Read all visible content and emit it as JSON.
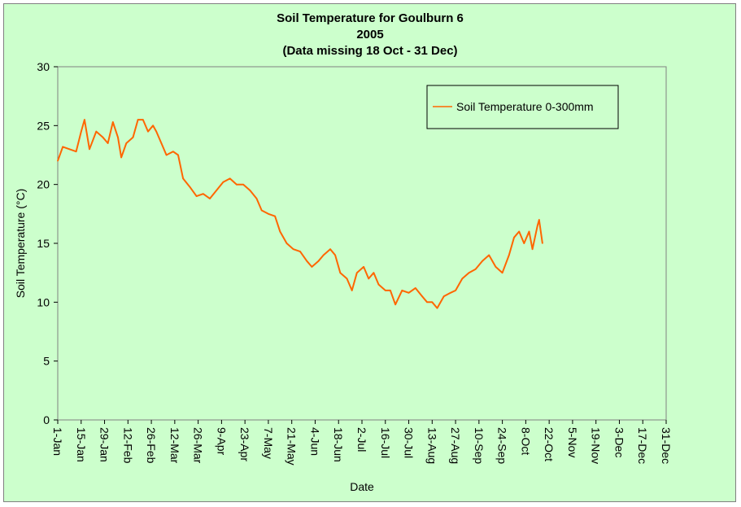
{
  "chart_data": {
    "type": "line",
    "title": [
      "Soil Temperature for Goulburn 6",
      "2005",
      "(Data missing 18 Oct - 31 Dec)"
    ],
    "xlabel": "Date",
    "ylabel": "Soil Temperature (°C)",
    "ylim": [
      0,
      30
    ],
    "yticks": [
      0,
      5,
      10,
      15,
      20,
      25,
      30
    ],
    "xlim": [
      "2005-01-01",
      "2005-12-31"
    ],
    "xticks": [
      "1-Jan",
      "15-Jan",
      "29-Jan",
      "12-Feb",
      "26-Feb",
      "12-Mar",
      "26-Mar",
      "9-Apr",
      "23-Apr",
      "7-May",
      "21-May",
      "4-Jun",
      "18-Jun",
      "2-Jul",
      "16-Jul",
      "30-Jul",
      "13-Aug",
      "27-Aug",
      "10-Sep",
      "24-Sep",
      "8-Oct",
      "22-Oct",
      "5-Nov",
      "19-Nov",
      "3-Dec",
      "17-Dec",
      "31-Dec"
    ],
    "grid": false,
    "legend_position": "top-right",
    "series": [
      {
        "name": "Soil Temperature  0-300mm",
        "color": "#ff6600",
        "points": [
          {
            "date": "2005-01-01",
            "y": 22.0
          },
          {
            "date": "2005-01-04",
            "y": 23.2
          },
          {
            "date": "2005-01-08",
            "y": 23.0
          },
          {
            "date": "2005-01-12",
            "y": 22.8
          },
          {
            "date": "2005-01-15",
            "y": 24.5
          },
          {
            "date": "2005-01-17",
            "y": 25.5
          },
          {
            "date": "2005-01-20",
            "y": 23.0
          },
          {
            "date": "2005-01-24",
            "y": 24.5
          },
          {
            "date": "2005-01-28",
            "y": 24.0
          },
          {
            "date": "2005-01-31",
            "y": 23.5
          },
          {
            "date": "2005-02-03",
            "y": 25.3
          },
          {
            "date": "2005-02-06",
            "y": 24.0
          },
          {
            "date": "2005-02-08",
            "y": 22.3
          },
          {
            "date": "2005-02-11",
            "y": 23.5
          },
          {
            "date": "2005-02-15",
            "y": 24.0
          },
          {
            "date": "2005-02-18",
            "y": 25.5
          },
          {
            "date": "2005-02-21",
            "y": 25.5
          },
          {
            "date": "2005-02-24",
            "y": 24.5
          },
          {
            "date": "2005-02-27",
            "y": 25.0
          },
          {
            "date": "2005-03-01",
            "y": 24.5
          },
          {
            "date": "2005-03-04",
            "y": 23.5
          },
          {
            "date": "2005-03-07",
            "y": 22.5
          },
          {
            "date": "2005-03-11",
            "y": 22.8
          },
          {
            "date": "2005-03-14",
            "y": 22.5
          },
          {
            "date": "2005-03-17",
            "y": 20.5
          },
          {
            "date": "2005-03-21",
            "y": 19.8
          },
          {
            "date": "2005-03-25",
            "y": 19.0
          },
          {
            "date": "2005-03-29",
            "y": 19.2
          },
          {
            "date": "2005-04-02",
            "y": 18.8
          },
          {
            "date": "2005-04-06",
            "y": 19.5
          },
          {
            "date": "2005-04-10",
            "y": 20.2
          },
          {
            "date": "2005-04-14",
            "y": 20.5
          },
          {
            "date": "2005-04-18",
            "y": 20.0
          },
          {
            "date": "2005-04-22",
            "y": 20.0
          },
          {
            "date": "2005-04-26",
            "y": 19.5
          },
          {
            "date": "2005-04-30",
            "y": 18.8
          },
          {
            "date": "2005-05-03",
            "y": 17.8
          },
          {
            "date": "2005-05-07",
            "y": 17.5
          },
          {
            "date": "2005-05-11",
            "y": 17.3
          },
          {
            "date": "2005-05-14",
            "y": 16.0
          },
          {
            "date": "2005-05-18",
            "y": 15.0
          },
          {
            "date": "2005-05-22",
            "y": 14.5
          },
          {
            "date": "2005-05-26",
            "y": 14.3
          },
          {
            "date": "2005-05-30",
            "y": 13.5
          },
          {
            "date": "2005-06-02",
            "y": 13.0
          },
          {
            "date": "2005-06-06",
            "y": 13.5
          },
          {
            "date": "2005-06-09",
            "y": 14.0
          },
          {
            "date": "2005-06-13",
            "y": 14.5
          },
          {
            "date": "2005-06-16",
            "y": 14.0
          },
          {
            "date": "2005-06-19",
            "y": 12.5
          },
          {
            "date": "2005-06-23",
            "y": 12.0
          },
          {
            "date": "2005-06-26",
            "y": 11.0
          },
          {
            "date": "2005-06-29",
            "y": 12.5
          },
          {
            "date": "2005-07-03",
            "y": 13.0
          },
          {
            "date": "2005-07-06",
            "y": 12.0
          },
          {
            "date": "2005-07-09",
            "y": 12.5
          },
          {
            "date": "2005-07-12",
            "y": 11.5
          },
          {
            "date": "2005-07-16",
            "y": 11.0
          },
          {
            "date": "2005-07-19",
            "y": 11.0
          },
          {
            "date": "2005-07-22",
            "y": 9.8
          },
          {
            "date": "2005-07-26",
            "y": 11.0
          },
          {
            "date": "2005-07-30",
            "y": 10.8
          },
          {
            "date": "2005-08-03",
            "y": 11.2
          },
          {
            "date": "2005-08-07",
            "y": 10.5
          },
          {
            "date": "2005-08-10",
            "y": 10.0
          },
          {
            "date": "2005-08-13",
            "y": 10.0
          },
          {
            "date": "2005-08-16",
            "y": 9.5
          },
          {
            "date": "2005-08-20",
            "y": 10.5
          },
          {
            "date": "2005-08-24",
            "y": 10.8
          },
          {
            "date": "2005-08-27",
            "y": 11.0
          },
          {
            "date": "2005-08-31",
            "y": 12.0
          },
          {
            "date": "2005-09-04",
            "y": 12.5
          },
          {
            "date": "2005-09-08",
            "y": 12.8
          },
          {
            "date": "2005-09-12",
            "y": 13.5
          },
          {
            "date": "2005-09-16",
            "y": 14.0
          },
          {
            "date": "2005-09-20",
            "y": 13.0
          },
          {
            "date": "2005-09-24",
            "y": 12.5
          },
          {
            "date": "2005-09-28",
            "y": 14.0
          },
          {
            "date": "2005-10-01",
            "y": 15.5
          },
          {
            "date": "2005-10-04",
            "y": 16.0
          },
          {
            "date": "2005-10-07",
            "y": 15.0
          },
          {
            "date": "2005-10-10",
            "y": 16.0
          },
          {
            "date": "2005-10-12",
            "y": 14.5
          },
          {
            "date": "2005-10-15",
            "y": 16.5
          },
          {
            "date": "2005-10-16",
            "y": 17.0
          },
          {
            "date": "2005-10-18",
            "y": 15.0
          }
        ]
      }
    ]
  }
}
